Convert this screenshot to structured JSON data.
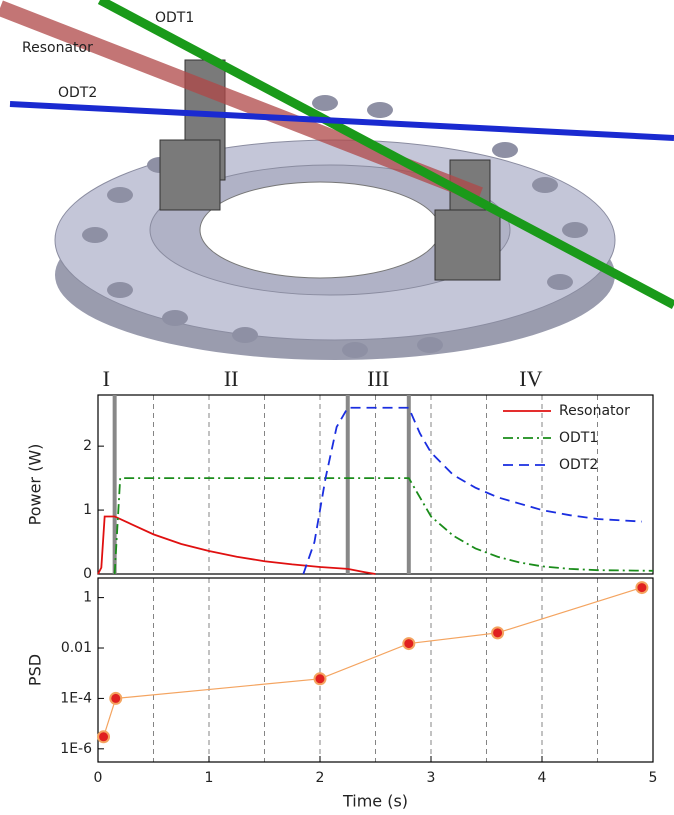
{
  "render_labels": {
    "odt1": "ODT1",
    "resonator": "Resonator",
    "odt2": "ODT2"
  },
  "chart_data": [
    {
      "type": "line",
      "ylabel": "Power (W)",
      "xlim": [
        0,
        5
      ],
      "ylim": [
        0,
        2.8
      ],
      "yticks": [
        0,
        1,
        2
      ],
      "x_gridlines": [
        0.5,
        1,
        1.5,
        2,
        2.5,
        3,
        3.5,
        4,
        4.5
      ],
      "stage_lines": [
        0.15,
        2.25,
        2.8
      ],
      "stage_labels": [
        "I",
        "II",
        "III",
        "IV"
      ],
      "legend": "upper right",
      "series": [
        {
          "name": "Resonator",
          "color": "#e01010",
          "dash": "solid",
          "x": [
            0,
            0.03,
            0.06,
            0.15,
            0.3,
            0.5,
            0.75,
            1,
            1.25,
            1.5,
            1.75,
            2,
            2.25,
            2.4,
            2.5
          ],
          "values": [
            0,
            0.1,
            0.9,
            0.9,
            0.78,
            0.62,
            0.47,
            0.36,
            0.27,
            0.2,
            0.15,
            0.11,
            0.08,
            0.03,
            0
          ]
        },
        {
          "name": "ODT1",
          "color": "#1a8c1a",
          "dash": "dashdot",
          "x": [
            0.15,
            0.2,
            2.8,
            2.9,
            3,
            3.2,
            3.4,
            3.6,
            3.8,
            4,
            4.25,
            4.5,
            5
          ],
          "values": [
            0,
            1.5,
            1.5,
            1.2,
            0.9,
            0.6,
            0.4,
            0.27,
            0.18,
            0.12,
            0.08,
            0.06,
            0.05
          ]
        },
        {
          "name": "ODT2",
          "color": "#1a2ee0",
          "dash": "dashed",
          "x": [
            1.85,
            1.95,
            2.05,
            2.15,
            2.25,
            2.8,
            2.9,
            3,
            3.2,
            3.4,
            3.6,
            3.8,
            4,
            4.25,
            4.5,
            4.9
          ],
          "values": [
            0,
            0.5,
            1.5,
            2.3,
            2.6,
            2.6,
            2.2,
            1.9,
            1.55,
            1.35,
            1.2,
            1.1,
            1.0,
            0.92,
            0.86,
            0.82
          ]
        }
      ]
    },
    {
      "type": "scatter-line",
      "ylabel": "PSD",
      "xlabel": "Time (s)",
      "log_y": true,
      "xlim": [
        0,
        5
      ],
      "xticks": [
        0,
        1,
        2,
        3,
        4,
        5
      ],
      "ylim": [
        3e-07,
        6
      ],
      "yticks": [
        {
          "value": 1e-06,
          "label": "1E-6"
        },
        {
          "value": 0.0001,
          "label": "1E-4"
        },
        0.01,
        1
      ],
      "x_gridlines": [
        0.5,
        1,
        1.5,
        2,
        2.5,
        3,
        3.5,
        4,
        4.5
      ],
      "color": "#f4a460",
      "marker_color": "#e02020",
      "x": [
        0.05,
        0.16,
        2,
        2.8,
        3.6,
        4.9
      ],
      "values": [
        3e-06,
        0.0001,
        0.0006,
        0.015,
        0.04,
        2.5
      ]
    }
  ]
}
